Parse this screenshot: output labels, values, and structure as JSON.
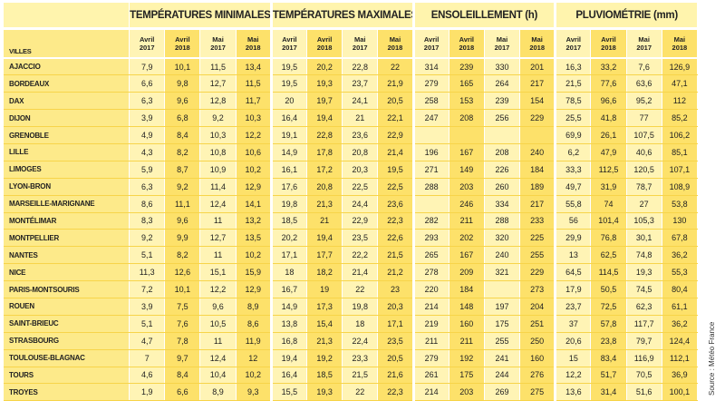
{
  "groups": [
    "TEMPÉRATURES MINIMALES (°C)",
    "TEMPÉRATURES MAXIMALES (°C)",
    "ENSOLEILLEMENT (h)",
    "PLUVIOMÉTRIE (mm)"
  ],
  "villes_label": "VILLES",
  "periods": [
    {
      "month": "Avril",
      "year": "2017"
    },
    {
      "month": "Avril",
      "year": "2018"
    },
    {
      "month": "Mai",
      "year": "2017"
    },
    {
      "month": "Mai",
      "year": "2018"
    }
  ],
  "rows": [
    {
      "city": "AJACCIO",
      "v": [
        "7,9",
        "10,1",
        "11,5",
        "13,4",
        "19,5",
        "20,2",
        "22,8",
        "22",
        "314",
        "239",
        "330",
        "201",
        "16,3",
        "33,2",
        "7,6",
        "126,9"
      ]
    },
    {
      "city": "BORDEAUX",
      "v": [
        "6,6",
        "9,8",
        "12,7",
        "11,5",
        "19,5",
        "19,3",
        "23,7",
        "21,9",
        "279",
        "165",
        "264",
        "217",
        "21,5",
        "77,6",
        "63,6",
        "47,1"
      ]
    },
    {
      "city": "DAX",
      "v": [
        "6,3",
        "9,6",
        "12,8",
        "11,7",
        "20",
        "19,7",
        "24,1",
        "20,5",
        "258",
        "153",
        "239",
        "154",
        "78,5",
        "96,6",
        "95,2",
        "112"
      ]
    },
    {
      "city": "DIJON",
      "v": [
        "3,9",
        "6,8",
        "9,2",
        "10,3",
        "16,4",
        "19,4",
        "21",
        "22,1",
        "247",
        "208",
        "256",
        "229",
        "25,5",
        "41,8",
        "77",
        "85,2"
      ]
    },
    {
      "city": "GRENOBLE",
      "v": [
        "4,9",
        "8,4",
        "10,3",
        "12,2",
        "19,1",
        "22,8",
        "23,6",
        "22,9",
        "",
        "",
        "",
        "",
        "69,9",
        "26,1",
        "107,5",
        "106,2"
      ]
    },
    {
      "city": "LILLE",
      "v": [
        "4,3",
        "8,2",
        "10,8",
        "10,6",
        "14,9",
        "17,8",
        "20,8",
        "21,4",
        "196",
        "167",
        "208",
        "240",
        "6,2",
        "47,9",
        "40,6",
        "85,1"
      ]
    },
    {
      "city": "LIMOGES",
      "v": [
        "5,9",
        "8,7",
        "10,9",
        "10,2",
        "16,1",
        "17,2",
        "20,3",
        "19,5",
        "271",
        "149",
        "226",
        "184",
        "33,3",
        "112,5",
        "120,5",
        "107,1"
      ]
    },
    {
      "city": "LYON-BRON",
      "v": [
        "6,3",
        "9,2",
        "11,4",
        "12,9",
        "17,6",
        "20,8",
        "22,5",
        "22,5",
        "288",
        "203",
        "260",
        "189",
        "49,7",
        "31,9",
        "78,7",
        "108,9"
      ]
    },
    {
      "city": "MARSEILLE-MARIGNANE",
      "v": [
        "8,6",
        "11,1",
        "12,4",
        "14,1",
        "19,8",
        "21,3",
        "24,4",
        "23,6",
        "",
        "246",
        "334",
        "217",
        "55,8",
        "74",
        "27",
        "53,8"
      ]
    },
    {
      "city": "MONTÉLIMAR",
      "v": [
        "8,3",
        "9,6",
        "11",
        "13,2",
        "18,5",
        "21",
        "22,9",
        "22,3",
        "282",
        "211",
        "288",
        "233",
        "56",
        "101,4",
        "105,3",
        "130"
      ]
    },
    {
      "city": "MONTPELLIER",
      "v": [
        "9,2",
        "9,9",
        "12,7",
        "13,5",
        "20,2",
        "19,4",
        "23,5",
        "22,6",
        "293",
        "202",
        "320",
        "225",
        "29,9",
        "76,8",
        "30,1",
        "67,8"
      ]
    },
    {
      "city": "NANTES",
      "v": [
        "5,1",
        "8,2",
        "11",
        "10,2",
        "17,1",
        "17,7",
        "22,2",
        "21,5",
        "265",
        "167",
        "240",
        "255",
        "13",
        "62,5",
        "74,8",
        "36,2"
      ]
    },
    {
      "city": "NICE",
      "v": [
        "11,3",
        "12,6",
        "15,1",
        "15,9",
        "18",
        "18,2",
        "21,4",
        "21,2",
        "278",
        "209",
        "321",
        "229",
        "64,5",
        "114,5",
        "19,3",
        "55,3"
      ]
    },
    {
      "city": "PARIS-MONTSOURIS",
      "v": [
        "7,2",
        "10,1",
        "12,2",
        "12,9",
        "16,7",
        "19",
        "22",
        "23",
        "220",
        "184",
        "",
        "273",
        "17,9",
        "50,5",
        "74,5",
        "80,4"
      ]
    },
    {
      "city": "ROUEN",
      "v": [
        "3,9",
        "7,5",
        "9,6",
        "8,9",
        "14,9",
        "17,3",
        "19,8",
        "20,3",
        "214",
        "148",
        "197",
        "204",
        "23,7",
        "72,5",
        "62,3",
        "61,1"
      ]
    },
    {
      "city": "SAINT-BRIEUC",
      "v": [
        "5,1",
        "7,6",
        "10,5",
        "8,6",
        "13,8",
        "15,4",
        "18",
        "17,1",
        "219",
        "160",
        "175",
        "251",
        "37",
        "57,8",
        "117,7",
        "36,2"
      ]
    },
    {
      "city": "STRASBOURG",
      "v": [
        "4,7",
        "7,8",
        "11",
        "11,9",
        "16,8",
        "21,3",
        "22,4",
        "23,5",
        "211",
        "211",
        "255",
        "250",
        "20,6",
        "23,8",
        "79,7",
        "124,4"
      ]
    },
    {
      "city": "TOULOUSE-BLAGNAC",
      "v": [
        "7",
        "9,7",
        "12,4",
        "12",
        "19,4",
        "19,2",
        "23,3",
        "20,5",
        "279",
        "192",
        "241",
        "160",
        "15",
        "83,4",
        "116,9",
        "112,1"
      ]
    },
    {
      "city": "TOURS",
      "v": [
        "4,6",
        "8,4",
        "10,4",
        "10,2",
        "16,4",
        "18,5",
        "21,5",
        "21,6",
        "261",
        "175",
        "244",
        "276",
        "12,2",
        "51,7",
        "70,5",
        "36,9"
      ]
    },
    {
      "city": "TROYES",
      "v": [
        "1,9",
        "6,6",
        "8,9",
        "9,3",
        "15,5",
        "19,3",
        "22",
        "22,3",
        "214",
        "203",
        "269",
        "275",
        "13,6",
        "31,4",
        "51,6",
        "100,1"
      ]
    }
  ],
  "source": "Source : Météo France"
}
